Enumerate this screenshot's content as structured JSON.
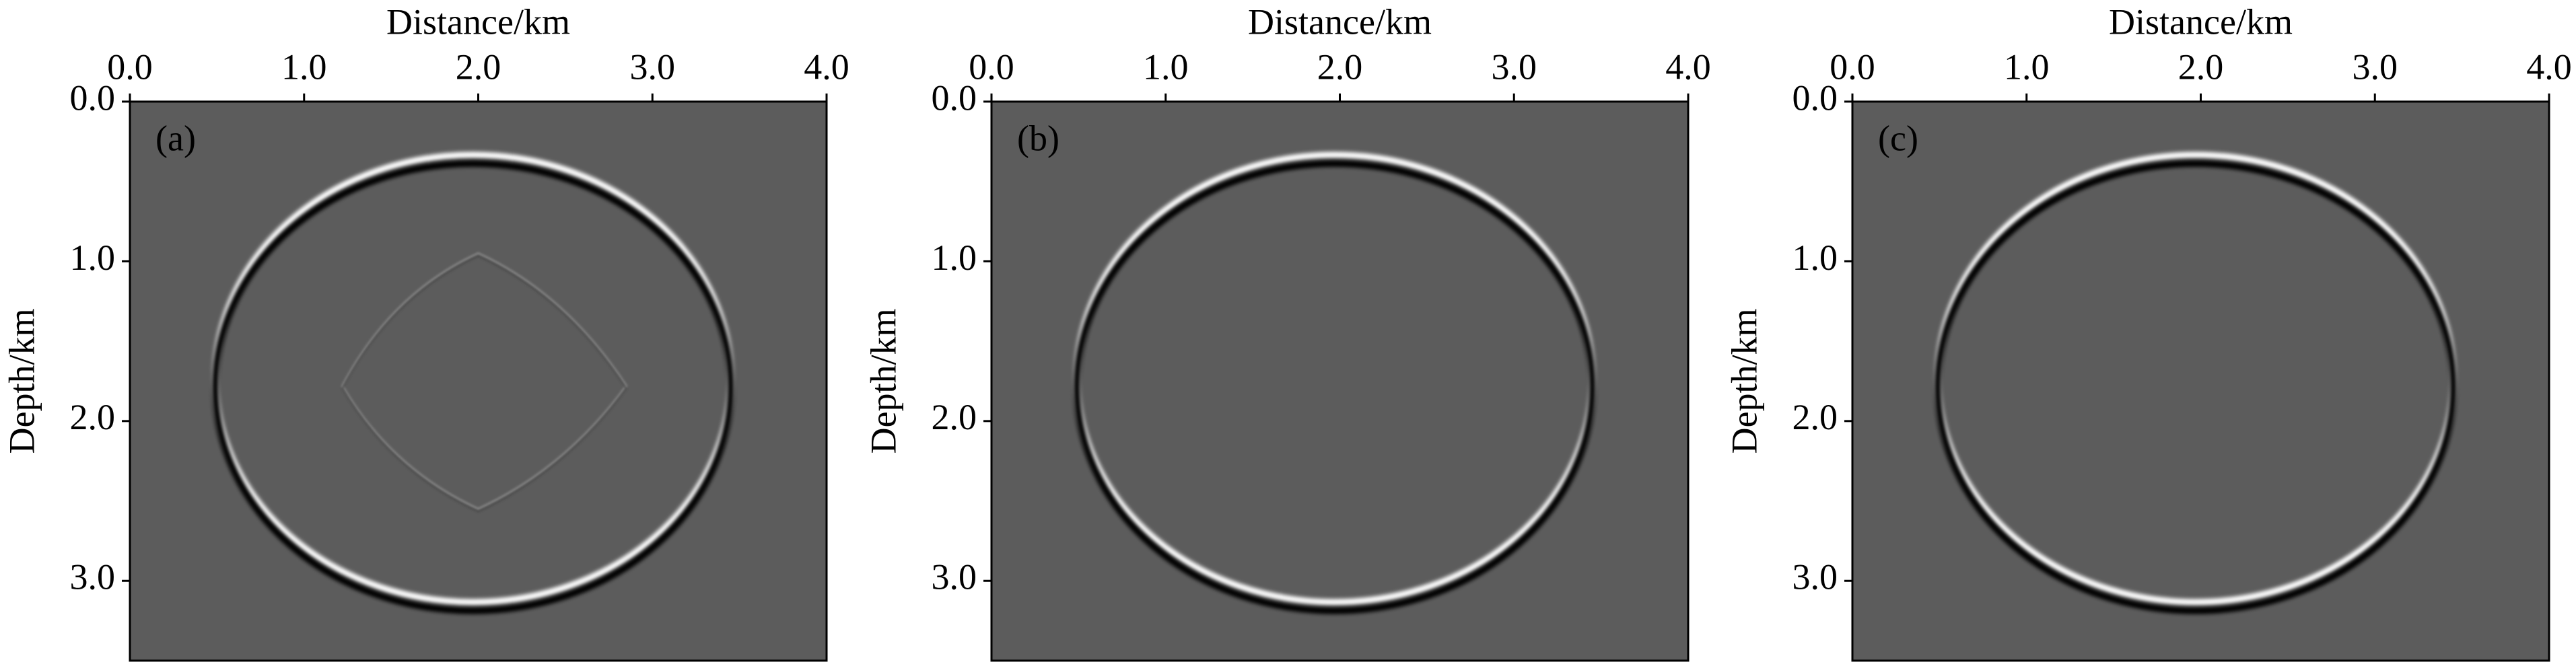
{
  "chart_data": [
    {
      "type": "wavefield",
      "xlabel": "Distance/km",
      "ylabel": "Depth/km",
      "panel_label": "(a)",
      "xlim": [
        0,
        4
      ],
      "ylim": [
        0,
        3.5
      ],
      "xticks": [
        {
          "value": 0,
          "label": "0.0"
        },
        {
          "value": 1,
          "label": "1.0"
        },
        {
          "value": 2,
          "label": "2.0"
        },
        {
          "value": 3,
          "label": "3.0"
        },
        {
          "value": 4,
          "label": "4.0"
        }
      ],
      "yticks": [
        {
          "value": 0,
          "label": "0.0"
        },
        {
          "value": 1,
          "label": "1.0"
        },
        {
          "value": 2,
          "label": "2.0"
        },
        {
          "value": 3,
          "label": "3.0"
        }
      ],
      "background": "#5c5c5c"
    },
    {
      "type": "wavefield",
      "xlabel": "Distance/km",
      "ylabel": "Depth/km",
      "panel_label": "(b)",
      "xlim": [
        0,
        4
      ],
      "ylim": [
        0,
        3.5
      ],
      "xticks": [
        {
          "value": 0,
          "label": "0.0"
        },
        {
          "value": 1,
          "label": "1.0"
        },
        {
          "value": 2,
          "label": "2.0"
        },
        {
          "value": 3,
          "label": "3.0"
        },
        {
          "value": 4,
          "label": "4.0"
        }
      ],
      "yticks": [
        {
          "value": 0,
          "label": "0.0"
        },
        {
          "value": 1,
          "label": "1.0"
        },
        {
          "value": 2,
          "label": "2.0"
        },
        {
          "value": 3,
          "label": "3.0"
        }
      ],
      "background": "#5c5c5c"
    },
    {
      "type": "wavefield",
      "xlabel": "Distance/km",
      "ylabel": "Depth/km",
      "panel_label": "(c)",
      "xlim": [
        0,
        4
      ],
      "ylim": [
        0,
        3.5
      ],
      "xticks": [
        {
          "value": 0,
          "label": "0.0"
        },
        {
          "value": 1,
          "label": "1.0"
        },
        {
          "value": 2,
          "label": "2.0"
        },
        {
          "value": 3,
          "label": "3.0"
        },
        {
          "value": 4,
          "label": "4.0"
        }
      ],
      "yticks": [
        {
          "value": 0,
          "label": "0.0"
        },
        {
          "value": 1,
          "label": "1.0"
        },
        {
          "value": 2,
          "label": "2.0"
        },
        {
          "value": 3,
          "label": "3.0"
        }
      ],
      "background": "#5c5c5c"
    }
  ]
}
